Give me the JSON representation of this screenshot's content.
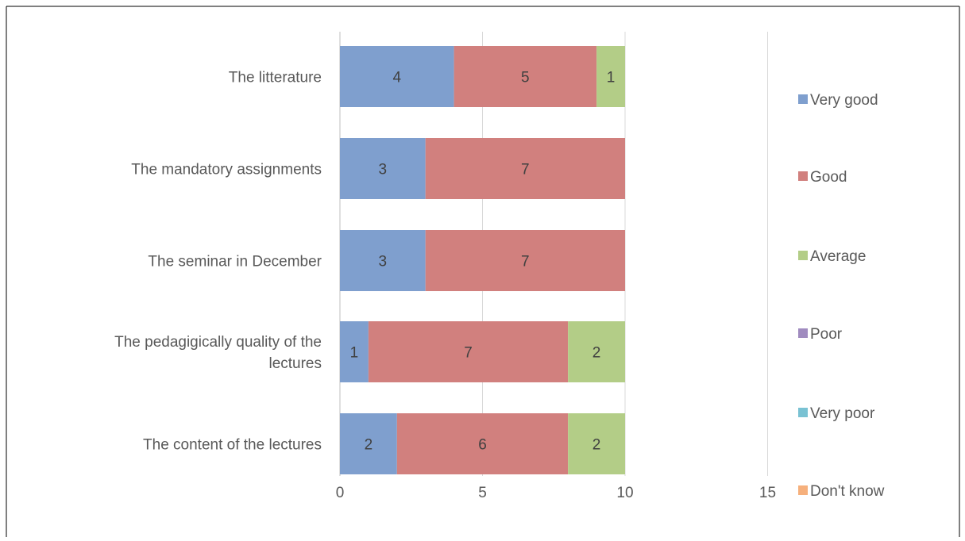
{
  "chart_data": {
    "type": "bar",
    "orientation": "horizontal",
    "stacked": true,
    "categories": [
      "The litterature",
      "The mandatory assignments",
      "The seminar in December",
      "The pedagigically quality of the lectures",
      "The content of the lectures"
    ],
    "category_lines": [
      [
        "The litterature"
      ],
      [
        "The mandatory assignments"
      ],
      [
        "The seminar in December"
      ],
      [
        "The pedagigically quality of the",
        "lectures"
      ],
      [
        "The content of the lectures"
      ]
    ],
    "series": [
      {
        "name": "Very good",
        "color": "#7f9fce",
        "values": [
          4,
          3,
          3,
          1,
          2
        ]
      },
      {
        "name": "Good",
        "color": "#d1807e",
        "values": [
          5,
          7,
          7,
          7,
          6
        ]
      },
      {
        "name": "Average",
        "color": "#b3cd87",
        "values": [
          1,
          0,
          0,
          2,
          2
        ]
      },
      {
        "name": "Poor",
        "color": "#a08bbf",
        "values": [
          0,
          0,
          0,
          0,
          0
        ]
      },
      {
        "name": "Very poor",
        "color": "#79c2d3",
        "values": [
          0,
          0,
          0,
          0,
          0
        ]
      },
      {
        "name": "Don't know",
        "color": "#f6b07c",
        "values": [
          0,
          0,
          0,
          0,
          0
        ]
      }
    ],
    "xlim": [
      0,
      15
    ],
    "xticks": [
      0,
      5,
      10,
      15
    ],
    "grid": true,
    "legend": "right",
    "title": "",
    "xlabel": "",
    "ylabel": ""
  }
}
